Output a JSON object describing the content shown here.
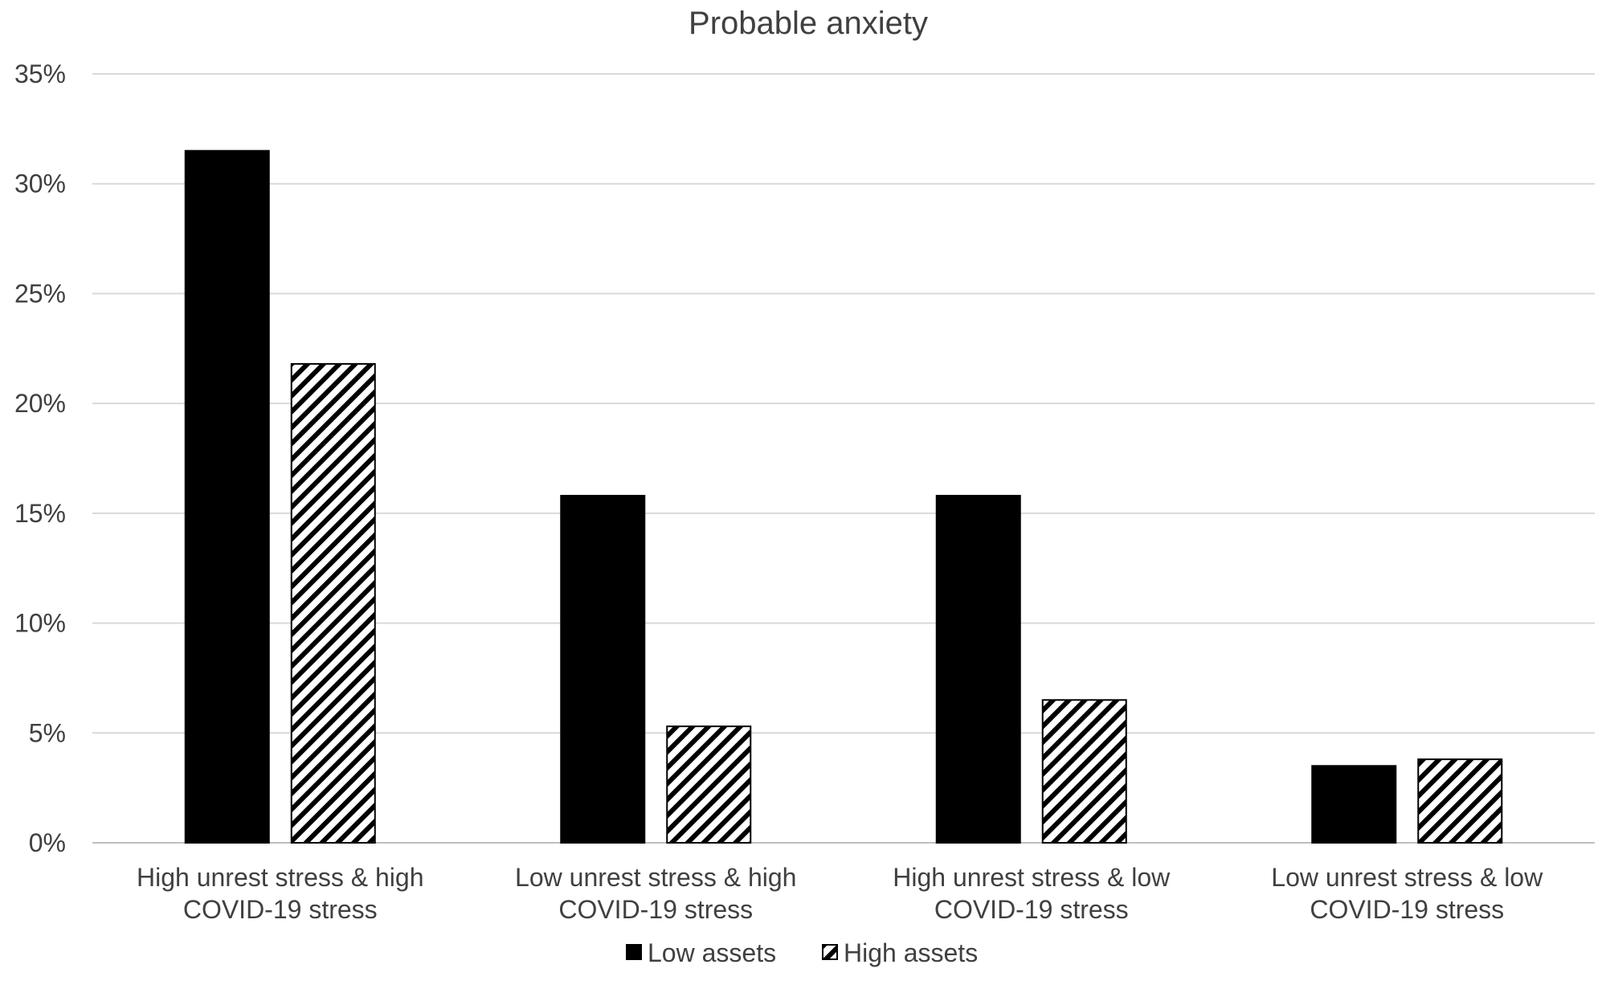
{
  "chart_data": {
    "type": "bar",
    "title": "Probable anxiety",
    "xlabel": "",
    "ylabel": "",
    "ylim": [
      0,
      35
    ],
    "yticks": [
      "0%",
      "5%",
      "10%",
      "15%",
      "20%",
      "25%",
      "30%",
      "35%"
    ],
    "ytick_values": [
      0,
      5,
      10,
      15,
      20,
      25,
      30,
      35
    ],
    "grid": true,
    "legend_position": "bottom",
    "categories": [
      [
        "High unrest stress & high",
        "COVID-19 stress"
      ],
      [
        "Low unrest stress & high",
        "COVID-19 stress"
      ],
      [
        "High unrest stress & low",
        "COVID-19 stress"
      ],
      [
        "Low unrest stress & low",
        "COVID-19 stress"
      ]
    ],
    "series": [
      {
        "name": "Low assets",
        "values": [
          31.5,
          15.8,
          15.8,
          3.5
        ],
        "fill": "#000000",
        "pattern": "solid"
      },
      {
        "name": "High assets",
        "values": [
          21.8,
          5.3,
          6.5,
          3.8
        ],
        "fill": "#000000",
        "pattern": "diagonal-hatch"
      }
    ]
  }
}
